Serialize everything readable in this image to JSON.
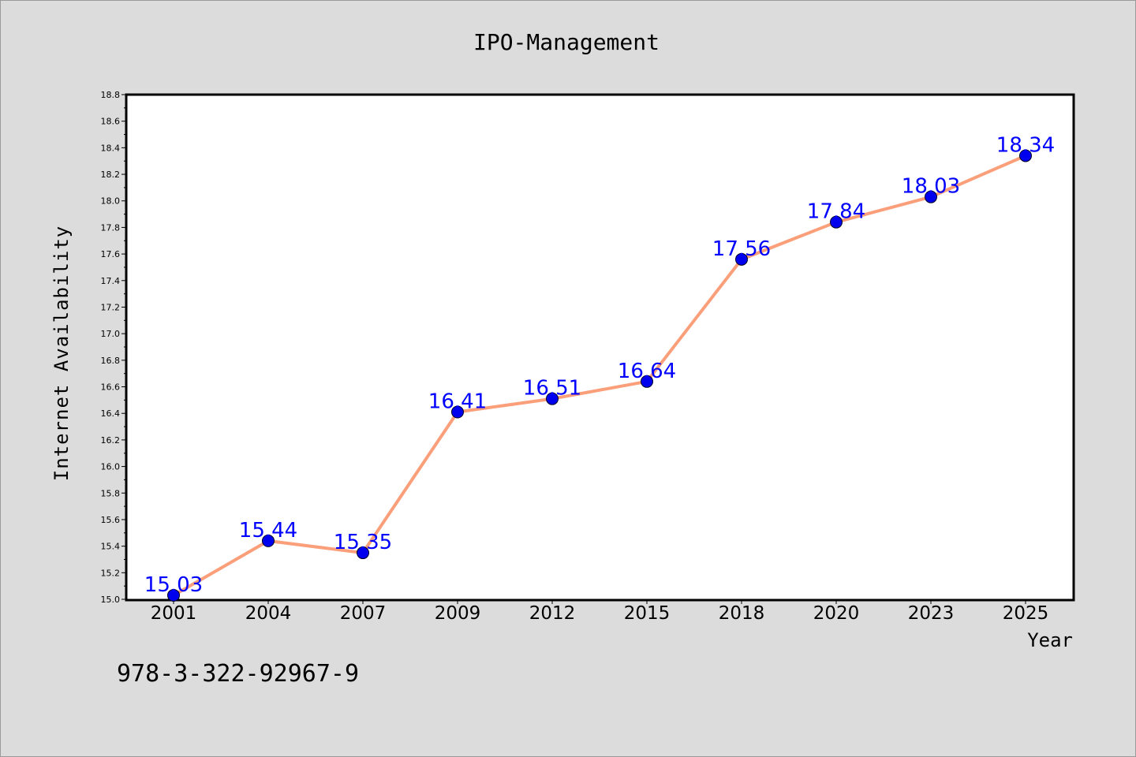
{
  "chart_data": {
    "type": "line",
    "title": "IPO-Management",
    "xlabel": "Year",
    "ylabel": "Internet Availability",
    "categories": [
      "2001",
      "2004",
      "2007",
      "2009",
      "2012",
      "2015",
      "2018",
      "2020",
      "2023",
      "2025"
    ],
    "series": [
      {
        "values": [
          15.03,
          15.44,
          15.35,
          16.41,
          16.51,
          16.64,
          17.56,
          17.84,
          18.03,
          18.34
        ]
      }
    ],
    "data_labels": [
      "15.03",
      "15.44",
      "15.35",
      "16.41",
      "16.51",
      "16.64",
      "17.56",
      "17.84",
      "18.03",
      "18.34"
    ],
    "ylim": [
      15.0,
      18.8
    ],
    "yticks": [
      "15.0",
      "15.2",
      "15.4",
      "15.6",
      "15.8",
      "16.0",
      "16.2",
      "16.4",
      "16.6",
      "16.8",
      "17.0",
      "17.2",
      "17.4",
      "17.6",
      "17.8",
      "18.0",
      "18.2",
      "18.4",
      "18.6",
      "18.8"
    ],
    "grid": false,
    "line_color": "#fa9f7a",
    "marker_color": "#0000ee",
    "label_color": "#0000ff"
  },
  "footer_text": "978-3-322-92967-9"
}
